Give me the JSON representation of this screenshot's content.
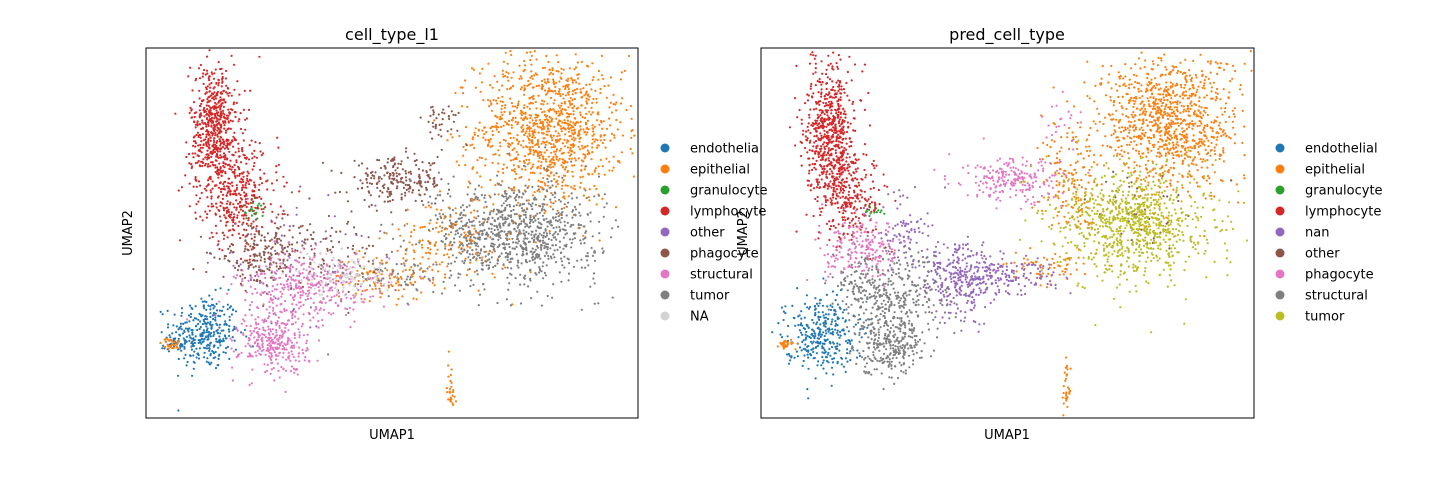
{
  "figure": {
    "panels": [
      {
        "title": "cell_type_l1",
        "xlabel": "UMAP1",
        "ylabel": "UMAP2",
        "legend": [
          {
            "label": "endothelia",
            "color": "#1f77b4"
          },
          {
            "label": "epithelial",
            "color": "#ff7f0e"
          },
          {
            "label": "granulocyte",
            "color": "#2ca02c"
          },
          {
            "label": "lymphocyte",
            "color": "#d62728"
          },
          {
            "label": "other",
            "color": "#9467bd"
          },
          {
            "label": "phagocyte",
            "color": "#8c564b"
          },
          {
            "label": "structural",
            "color": "#e377c2"
          },
          {
            "label": "tumor",
            "color": "#7f7f7f"
          },
          {
            "label": "NA",
            "color": "#d3d3d3"
          }
        ]
      },
      {
        "title": "pred_cell_type",
        "xlabel": "UMAP1",
        "ylabel": "UMAP2",
        "legend": [
          {
            "label": "endothelial",
            "color": "#1f77b4"
          },
          {
            "label": "epithelial",
            "color": "#ff7f0e"
          },
          {
            "label": "granulocyte",
            "color": "#2ca02c"
          },
          {
            "label": "lymphocyte",
            "color": "#d62728"
          },
          {
            "label": "nan",
            "color": "#9467bd"
          },
          {
            "label": "other",
            "color": "#8c564b"
          },
          {
            "label": "phagocyte",
            "color": "#e377c2"
          },
          {
            "label": "structural",
            "color": "#7f7f7f"
          },
          {
            "label": "tumor",
            "color": "#bcbd22"
          }
        ]
      }
    ]
  },
  "chart_data": [
    {
      "type": "scatter",
      "title": "cell_type_l1",
      "xlabel": "UMAP1",
      "ylabel": "UMAP2",
      "ticks": "none",
      "grid": false,
      "legend_position": "right-outside",
      "series": [
        {
          "name": "endothelia",
          "color": "#1f77b4",
          "clusters": [
            {
              "cx": 0.12,
              "cy": 0.23,
              "sx": 0.035,
              "sy": 0.05,
              "n": 320
            },
            {
              "cx": 0.06,
              "cy": 0.2,
              "sx": 0.012,
              "sy": 0.01,
              "n": 30
            }
          ]
        },
        {
          "name": "epithelial",
          "color": "#ff7f0e",
          "clusters": [
            {
              "cx": 0.82,
              "cy": 0.78,
              "sx": 0.075,
              "sy": 0.1,
              "n": 1100
            },
            {
              "cx": 0.62,
              "cy": 0.48,
              "sx": 0.06,
              "sy": 0.06,
              "n": 160
            },
            {
              "cx": 0.48,
              "cy": 0.38,
              "sx": 0.05,
              "sy": 0.03,
              "n": 110
            },
            {
              "cx": 0.62,
              "cy": 0.08,
              "sx": 0.004,
              "sy": 0.04,
              "n": 30
            },
            {
              "cx": 0.05,
              "cy": 0.2,
              "sx": 0.01,
              "sy": 0.008,
              "n": 30
            }
          ]
        },
        {
          "name": "granulocyte",
          "color": "#2ca02c",
          "clusters": [
            {
              "cx": 0.22,
              "cy": 0.56,
              "sx": 0.012,
              "sy": 0.012,
              "n": 24
            }
          ]
        },
        {
          "name": "lymphocyte",
          "color": "#d62728",
          "clusters": [
            {
              "cx": 0.14,
              "cy": 0.78,
              "sx": 0.025,
              "sy": 0.09,
              "n": 620
            },
            {
              "cx": 0.19,
              "cy": 0.6,
              "sx": 0.04,
              "sy": 0.07,
              "n": 320
            }
          ]
        },
        {
          "name": "other",
          "color": "#9467bd",
          "clusters": [
            {
              "cx": 0.3,
              "cy": 0.42,
              "sx": 0.08,
              "sy": 0.08,
              "n": 80
            }
          ]
        },
        {
          "name": "phagocyte",
          "color": "#8c564b",
          "clusters": [
            {
              "cx": 0.51,
              "cy": 0.64,
              "sx": 0.05,
              "sy": 0.03,
              "n": 220
            },
            {
              "cx": 0.23,
              "cy": 0.44,
              "sx": 0.04,
              "sy": 0.04,
              "n": 180
            },
            {
              "cx": 0.35,
              "cy": 0.46,
              "sx": 0.06,
              "sy": 0.05,
              "n": 100
            },
            {
              "cx": 0.6,
              "cy": 0.8,
              "sx": 0.02,
              "sy": 0.03,
              "n": 40
            }
          ]
        },
        {
          "name": "structural",
          "color": "#e377c2",
          "clusters": [
            {
              "cx": 0.26,
              "cy": 0.2,
              "sx": 0.035,
              "sy": 0.04,
              "n": 280
            },
            {
              "cx": 0.3,
              "cy": 0.34,
              "sx": 0.06,
              "sy": 0.05,
              "n": 260
            },
            {
              "cx": 0.38,
              "cy": 0.36,
              "sx": 0.06,
              "sy": 0.04,
              "n": 120
            }
          ]
        },
        {
          "name": "tumor",
          "color": "#7f7f7f",
          "clusters": [
            {
              "cx": 0.75,
              "cy": 0.5,
              "sx": 0.085,
              "sy": 0.07,
              "n": 900
            },
            {
              "cx": 0.5,
              "cy": 0.38,
              "sx": 0.06,
              "sy": 0.03,
              "n": 60
            }
          ]
        },
        {
          "name": "NA",
          "color": "#d3d3d3",
          "clusters": [
            {
              "cx": 0.4,
              "cy": 0.39,
              "sx": 0.05,
              "sy": 0.03,
              "n": 120
            }
          ]
        }
      ]
    },
    {
      "type": "scatter",
      "title": "pred_cell_type",
      "xlabel": "UMAP1",
      "ylabel": "UMAP2",
      "ticks": "none",
      "grid": false,
      "legend_position": "right-outside",
      "series": [
        {
          "name": "endothelial",
          "color": "#1f77b4",
          "clusters": [
            {
              "cx": 0.12,
              "cy": 0.23,
              "sx": 0.035,
              "sy": 0.05,
              "n": 320
            }
          ]
        },
        {
          "name": "epithelial",
          "color": "#ff7f0e",
          "clusters": [
            {
              "cx": 0.83,
              "cy": 0.8,
              "sx": 0.07,
              "sy": 0.09,
              "n": 1000
            },
            {
              "cx": 0.63,
              "cy": 0.64,
              "sx": 0.03,
              "sy": 0.08,
              "n": 160
            },
            {
              "cx": 0.58,
              "cy": 0.4,
              "sx": 0.04,
              "sy": 0.02,
              "n": 60
            },
            {
              "cx": 0.62,
              "cy": 0.08,
              "sx": 0.004,
              "sy": 0.04,
              "n": 30
            },
            {
              "cx": 0.05,
              "cy": 0.2,
              "sx": 0.01,
              "sy": 0.008,
              "n": 30
            }
          ]
        },
        {
          "name": "granulocyte",
          "color": "#2ca02c",
          "clusters": [
            {
              "cx": 0.23,
              "cy": 0.56,
              "sx": 0.01,
              "sy": 0.01,
              "n": 16
            }
          ]
        },
        {
          "name": "lymphocyte",
          "color": "#d62728",
          "clusters": [
            {
              "cx": 0.14,
              "cy": 0.78,
              "sx": 0.025,
              "sy": 0.09,
              "n": 620
            },
            {
              "cx": 0.18,
              "cy": 0.6,
              "sx": 0.035,
              "sy": 0.06,
              "n": 260
            }
          ]
        },
        {
          "name": "nan",
          "color": "#9467bd",
          "clusters": [
            {
              "cx": 0.41,
              "cy": 0.38,
              "sx": 0.04,
              "sy": 0.05,
              "n": 300
            },
            {
              "cx": 0.5,
              "cy": 0.38,
              "sx": 0.05,
              "sy": 0.025,
              "n": 120
            },
            {
              "cx": 0.29,
              "cy": 0.5,
              "sx": 0.03,
              "sy": 0.05,
              "n": 90
            }
          ]
        },
        {
          "name": "other",
          "color": "#8c564b",
          "clusters": [
            {
              "cx": 0.76,
              "cy": 0.54,
              "sx": 0.06,
              "sy": 0.06,
              "n": 40
            }
          ]
        },
        {
          "name": "phagocyte",
          "color": "#e377c2",
          "clusters": [
            {
              "cx": 0.51,
              "cy": 0.64,
              "sx": 0.05,
              "sy": 0.03,
              "n": 220
            },
            {
              "cx": 0.21,
              "cy": 0.45,
              "sx": 0.04,
              "sy": 0.04,
              "n": 200
            },
            {
              "cx": 0.61,
              "cy": 0.8,
              "sx": 0.02,
              "sy": 0.03,
              "n": 20
            }
          ]
        },
        {
          "name": "structural",
          "color": "#7f7f7f",
          "clusters": [
            {
              "cx": 0.26,
              "cy": 0.2,
              "sx": 0.035,
              "sy": 0.04,
              "n": 260
            },
            {
              "cx": 0.28,
              "cy": 0.32,
              "sx": 0.05,
              "sy": 0.06,
              "n": 300
            },
            {
              "cx": 0.2,
              "cy": 0.36,
              "sx": 0.025,
              "sy": 0.05,
              "n": 100
            }
          ]
        },
        {
          "name": "tumor",
          "color": "#bcbd22",
          "clusters": [
            {
              "cx": 0.76,
              "cy": 0.53,
              "sx": 0.075,
              "sy": 0.075,
              "n": 900
            }
          ]
        }
      ]
    }
  ]
}
